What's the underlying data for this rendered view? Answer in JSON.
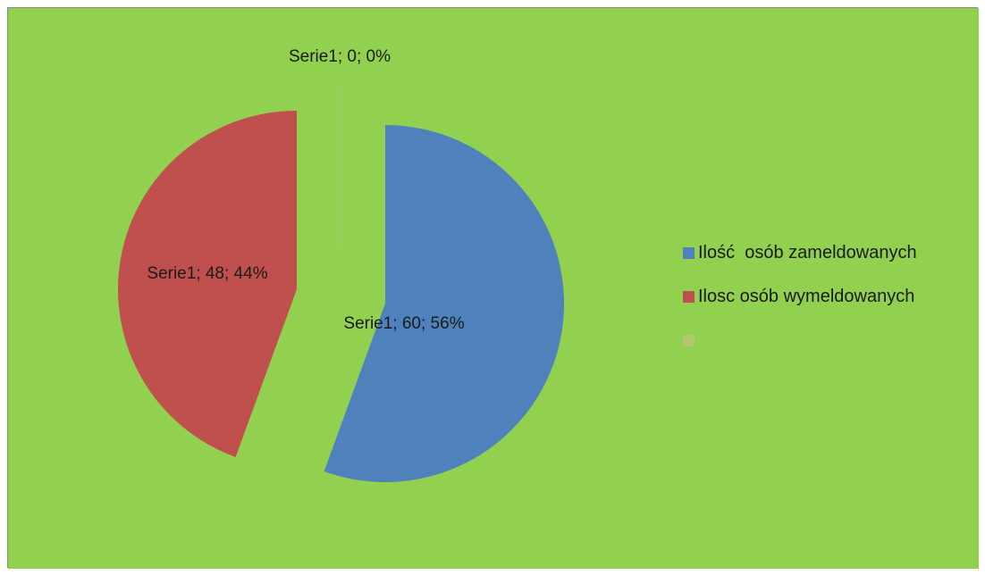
{
  "chart_data": {
    "type": "pie",
    "background": "#92d050",
    "series": [
      {
        "name": "Serie1",
        "slices": [
          {
            "label": "Ilość  osób zameldowanych",
            "value": 60,
            "percent": "56%",
            "data_label": "Serie1; 60; 56%",
            "color": "#4f81bd"
          },
          {
            "label": "Ilosc osób wymeldowanych",
            "value": 48,
            "percent": "44%",
            "data_label": "Serie1; 48; 44%",
            "color": "#c0504d"
          },
          {
            "label": "",
            "value": 0,
            "percent": "0%",
            "data_label": "Serie1; 0; 0%",
            "color": "#9bbb59"
          }
        ]
      }
    ],
    "legend_position": "right",
    "exploded": true
  }
}
